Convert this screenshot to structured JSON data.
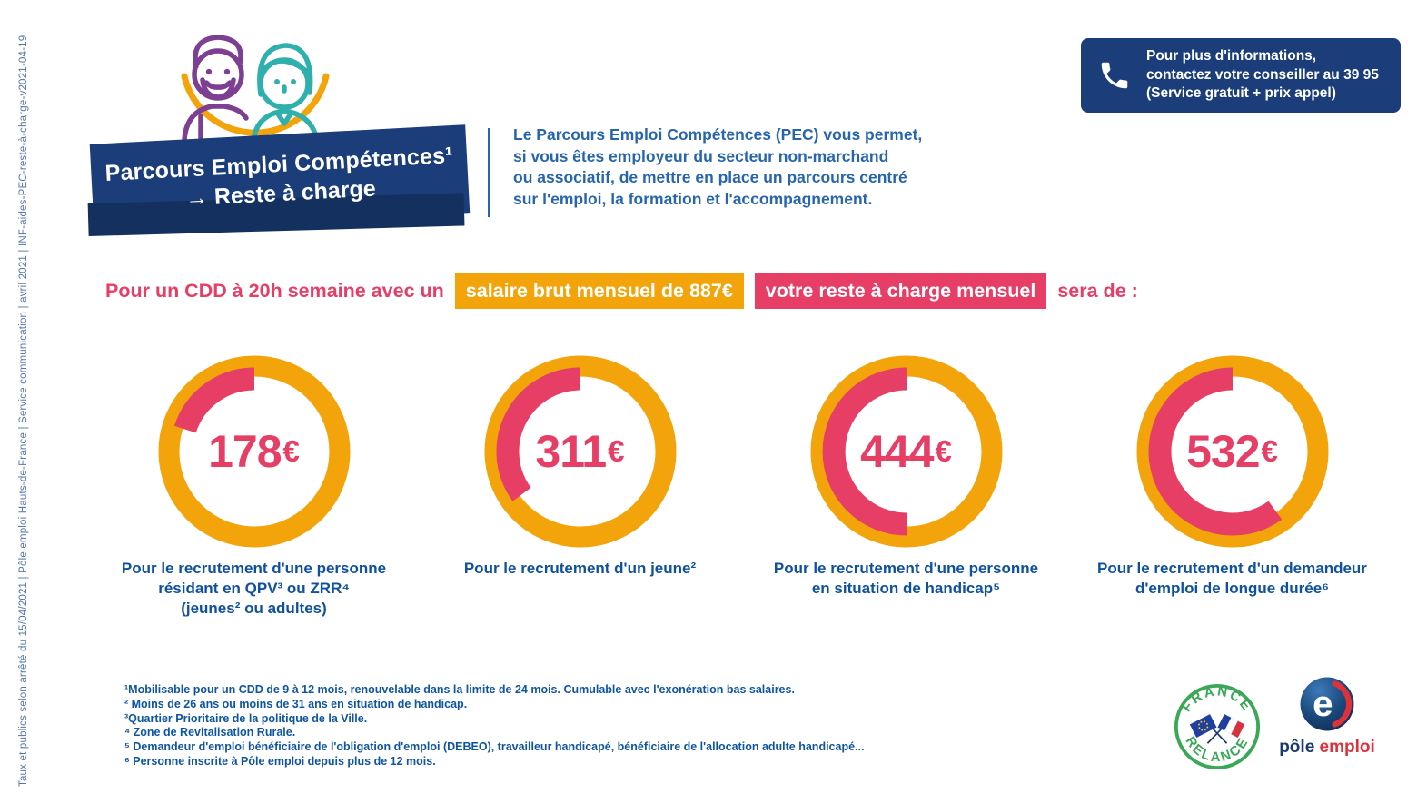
{
  "meta": {
    "vertical_text": "Taux et publics selon arrêté du 15/04/2021 | Pôle emploi Hauts-de-France | Service communication | avril 2021 | INF-aides-PEC-reste-à-charge-v2021-04-19"
  },
  "banner": {
    "title": "Parcours Emploi Compétences¹",
    "subtitle": "→ Reste à charge",
    "background": "#1b3d7a"
  },
  "contact_box": {
    "lines": [
      "Pour plus d'informations,",
      "contactez votre conseiller au 39 95",
      "(Service gratuit + prix appel)"
    ],
    "background": "#1b3d7a"
  },
  "intro": {
    "lines": [
      "Le Parcours Emploi Compétences (PEC) vous permet,",
      "si vous êtes employeur du secteur non-marchand",
      "ou associatif, de mettre en place un parcours centré",
      "sur l'emploi, la formation et l'accompagnement."
    ]
  },
  "headline": {
    "prefix": "Pour un CDD à 20h semaine avec un",
    "salary_highlight": "salaire brut mensuel de 887€",
    "cost_highlight": "votre reste à charge mensuel",
    "suffix": "sera de :",
    "text_color": "#e73e66",
    "salary_bg": "#f3a40a",
    "cost_bg": "#e73e66"
  },
  "chart_data": {
    "type": "donut",
    "unit": "€",
    "reference_total": 887,
    "ring_color": "#f3a40a",
    "fill_color": "#e73e66",
    "items": [
      {
        "value": 178,
        "label": "Pour le recrutement d'une personne résidant en QPV³ ou ZRR⁴ (jeunes² ou adultes)",
        "label_lines": [
          "Pour le recrutement d'une personne",
          "résidant en QPV³ ou ZRR⁴",
          "(jeunes² ou adultes)"
        ]
      },
      {
        "value": 311,
        "label": "Pour le recrutement d'un jeune²",
        "label_lines": [
          "Pour le recrutement d'un jeune²"
        ]
      },
      {
        "value": 444,
        "label": "Pour le recrutement d'une personne en situation de handicap⁵",
        "label_lines": [
          "Pour le recrutement d'une personne",
          "en situation de handicap⁵"
        ]
      },
      {
        "value": 532,
        "label": "Pour le recrutement d'un demandeur d'emploi de longue durée⁶",
        "label_lines": [
          "Pour le recrutement d'un demandeur",
          "d'emploi de longue durée⁶"
        ]
      }
    ]
  },
  "footnotes": [
    "¹Mobilisable pour un CDD de 9 à 12 mois, renouvelable dans la limite de 24 mois. Cumulable avec l'exonération bas salaires.",
    "² Moins de 26 ans ou moins de 31 ans en situation de handicap.",
    "³Quartier Prioritaire de la politique de la Ville.",
    "⁴ Zone de Revitalisation Rurale.",
    "⁵ Demandeur d'emploi bénéficiaire de l'obligation d'emploi (DEBEO), travailleur handicapé, bénéficiaire de l'allocation adulte handicapé...",
    "⁶ Personne inscrite à Pôle emploi depuis plus de 12 mois."
  ],
  "logos": {
    "france_relance": {
      "top": "FRANCE",
      "bottom": "RELANCE",
      "color": "#3aa857"
    },
    "pole_emploi": {
      "letter": "e",
      "word1": "pôle",
      "word2": "emploi",
      "navy": "#1d3a6e",
      "red": "#e0313a"
    }
  }
}
